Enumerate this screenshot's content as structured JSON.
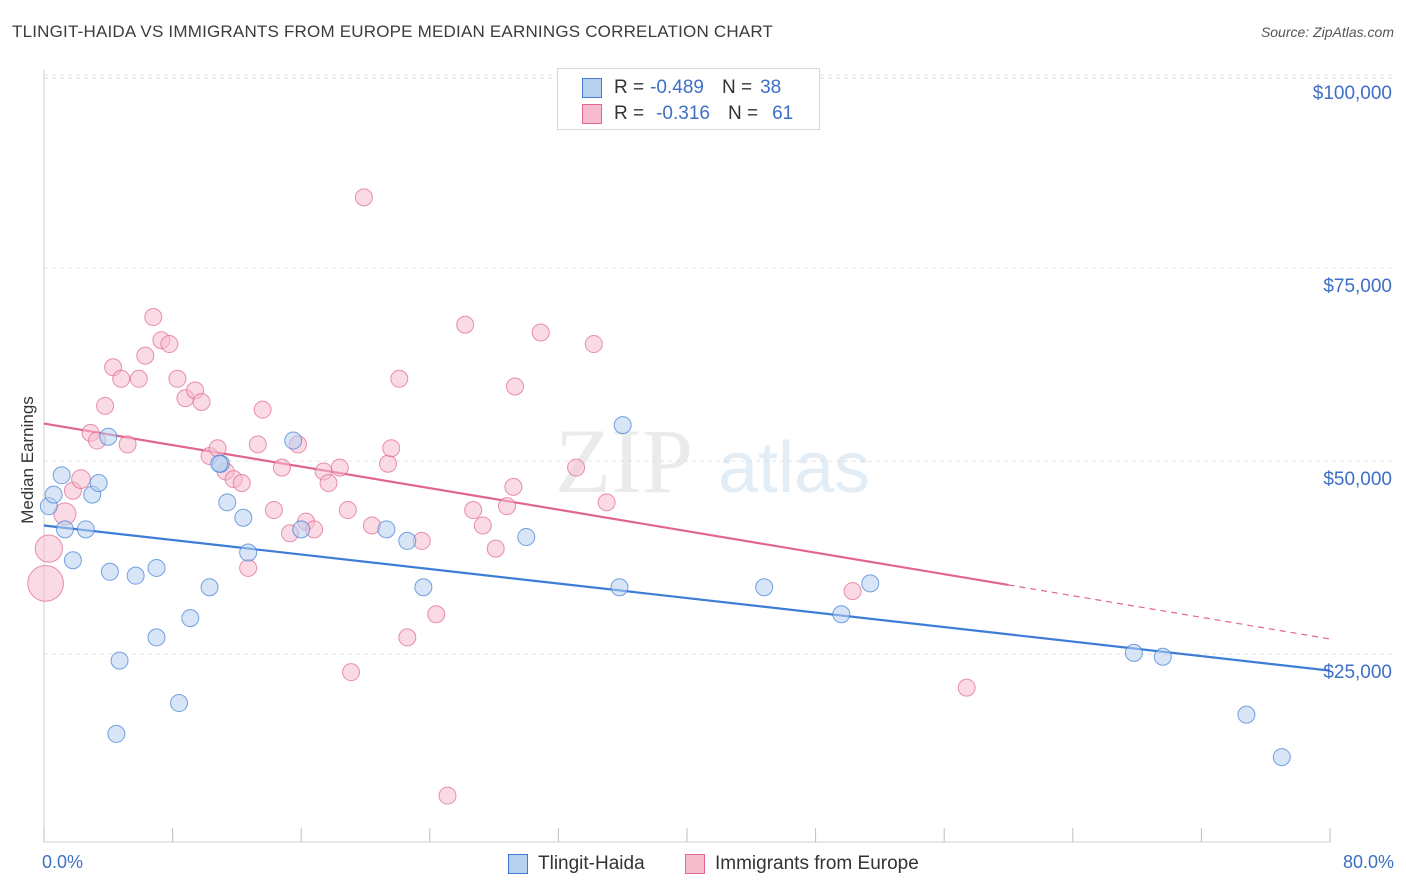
{
  "title": "TLINGIT-HAIDA VS IMMIGRANTS FROM EUROPE MEDIAN EARNINGS CORRELATION CHART",
  "source": "Source: ZipAtlas.com",
  "watermark": {
    "zip": "ZIP",
    "atlas": "atlas"
  },
  "legend": {
    "r_label": "R =",
    "n_label": "N =",
    "series1": {
      "r": "-0.489",
      "n": "38"
    },
    "series2": {
      "r": "-0.316",
      "n": "61"
    }
  },
  "chart_data": {
    "type": "scatter",
    "title": "TLINGIT-HAIDA VS IMMIGRANTS FROM EUROPE MEDIAN EARNINGS CORRELATION CHART",
    "xlabel": "",
    "ylabel": "Median Earnings",
    "xlim": [
      0,
      80
    ],
    "ylim": [
      3000,
      103000
    ],
    "x_tick_labels": [
      "0.0%",
      "80.0%"
    ],
    "y_ticks": [
      25000,
      50000,
      75000,
      100000
    ],
    "y_tick_labels": [
      "$25,000",
      "$50,000",
      "$75,000",
      "$100,000"
    ],
    "colors": {
      "series1": "#3d7dd6",
      "series2": "#e06590",
      "fill1": "#b8d0f0",
      "fill2": "#f6bccd",
      "axis_text": "#3d6fc4"
    },
    "series": [
      {
        "name": "Tlingit-Haida",
        "trend": {
          "x1": 0,
          "y1": 44000,
          "x2": 80,
          "y2": 25200
        },
        "points": [
          {
            "x": 0.3,
            "y": 46500,
            "s": 1
          },
          {
            "x": 0.6,
            "y": 48000,
            "s": 1
          },
          {
            "x": 1.1,
            "y": 50500,
            "s": 1
          },
          {
            "x": 1.3,
            "y": 43500,
            "s": 1
          },
          {
            "x": 1.8,
            "y": 39500,
            "s": 1
          },
          {
            "x": 2.6,
            "y": 43500,
            "s": 1
          },
          {
            "x": 3.0,
            "y": 48000,
            "s": 1
          },
          {
            "x": 3.4,
            "y": 49500,
            "s": 1
          },
          {
            "x": 4.1,
            "y": 38000,
            "s": 1
          },
          {
            "x": 4.0,
            "y": 55500,
            "s": 1
          },
          {
            "x": 4.7,
            "y": 26500,
            "s": 1
          },
          {
            "x": 4.5,
            "y": 17000,
            "s": 1
          },
          {
            "x": 5.7,
            "y": 37500,
            "s": 1
          },
          {
            "x": 7.0,
            "y": 38500,
            "s": 1
          },
          {
            "x": 7.0,
            "y": 29500,
            "s": 1
          },
          {
            "x": 8.4,
            "y": 21000,
            "s": 1
          },
          {
            "x": 9.1,
            "y": 32000,
            "s": 1
          },
          {
            "x": 10.3,
            "y": 36000,
            "s": 1
          },
          {
            "x": 11.0,
            "y": 52000,
            "s": 1
          },
          {
            "x": 11.4,
            "y": 47000,
            "s": 1
          },
          {
            "x": 12.4,
            "y": 45000,
            "s": 1
          },
          {
            "x": 12.7,
            "y": 40500,
            "s": 1
          },
          {
            "x": 15.5,
            "y": 55000,
            "s": 1
          },
          {
            "x": 16.0,
            "y": 43500,
            "s": 1
          },
          {
            "x": 21.3,
            "y": 43500,
            "s": 1
          },
          {
            "x": 22.6,
            "y": 42000,
            "s": 1
          },
          {
            "x": 23.6,
            "y": 36000,
            "s": 1
          },
          {
            "x": 30.0,
            "y": 42500,
            "s": 1
          },
          {
            "x": 36.0,
            "y": 57000,
            "s": 1
          },
          {
            "x": 35.8,
            "y": 36000,
            "s": 1
          },
          {
            "x": 44.8,
            "y": 36000,
            "s": 1
          },
          {
            "x": 49.6,
            "y": 32500,
            "s": 1
          },
          {
            "x": 51.4,
            "y": 36500,
            "s": 1
          },
          {
            "x": 67.8,
            "y": 27500,
            "s": 1
          },
          {
            "x": 69.6,
            "y": 27000,
            "s": 1
          },
          {
            "x": 74.8,
            "y": 19500,
            "s": 1
          },
          {
            "x": 77.0,
            "y": 14000,
            "s": 1
          },
          {
            "x": 10.9,
            "y": 52000,
            "s": 1
          }
        ]
      },
      {
        "name": "Immigrants from Europe",
        "trend": {
          "x1": 0,
          "y1": 57200,
          "x2": 60,
          "y2": 36300,
          "dash_x2": 80,
          "dash_y2": 29300
        },
        "points": [
          {
            "x": 0.1,
            "y": 36500,
            "s": 2.1
          },
          {
            "x": 0.3,
            "y": 41000,
            "s": 1.6
          },
          {
            "x": 1.3,
            "y": 45500,
            "s": 1.3
          },
          {
            "x": 1.8,
            "y": 48500,
            "s": 1
          },
          {
            "x": 2.3,
            "y": 50000,
            "s": 1.1
          },
          {
            "x": 2.9,
            "y": 56000,
            "s": 1
          },
          {
            "x": 3.3,
            "y": 55000,
            "s": 1
          },
          {
            "x": 3.8,
            "y": 59500,
            "s": 1
          },
          {
            "x": 4.3,
            "y": 64500,
            "s": 1
          },
          {
            "x": 4.8,
            "y": 63000,
            "s": 1
          },
          {
            "x": 5.2,
            "y": 54500,
            "s": 1
          },
          {
            "x": 5.9,
            "y": 63000,
            "s": 1
          },
          {
            "x": 6.3,
            "y": 66000,
            "s": 1
          },
          {
            "x": 6.8,
            "y": 71000,
            "s": 1
          },
          {
            "x": 7.3,
            "y": 68000,
            "s": 1
          },
          {
            "x": 7.8,
            "y": 67500,
            "s": 1
          },
          {
            "x": 8.3,
            "y": 63000,
            "s": 1
          },
          {
            "x": 8.8,
            "y": 60500,
            "s": 1
          },
          {
            "x": 9.4,
            "y": 61500,
            "s": 1
          },
          {
            "x": 9.8,
            "y": 60000,
            "s": 1
          },
          {
            "x": 10.3,
            "y": 53000,
            "s": 1
          },
          {
            "x": 10.8,
            "y": 54000,
            "s": 1
          },
          {
            "x": 11.3,
            "y": 51000,
            "s": 1
          },
          {
            "x": 11.8,
            "y": 50000,
            "s": 1
          },
          {
            "x": 12.3,
            "y": 49500,
            "s": 1
          },
          {
            "x": 12.7,
            "y": 38500,
            "s": 1
          },
          {
            "x": 13.3,
            "y": 54500,
            "s": 1
          },
          {
            "x": 13.6,
            "y": 59000,
            "s": 1
          },
          {
            "x": 14.3,
            "y": 46000,
            "s": 1
          },
          {
            "x": 14.8,
            "y": 51500,
            "s": 1
          },
          {
            "x": 15.3,
            "y": 43000,
            "s": 1
          },
          {
            "x": 15.8,
            "y": 54500,
            "s": 1
          },
          {
            "x": 16.3,
            "y": 44500,
            "s": 1
          },
          {
            "x": 16.8,
            "y": 43500,
            "s": 1
          },
          {
            "x": 17.4,
            "y": 51000,
            "s": 1
          },
          {
            "x": 17.7,
            "y": 49500,
            "s": 1
          },
          {
            "x": 18.4,
            "y": 51500,
            "s": 1
          },
          {
            "x": 18.9,
            "y": 46000,
            "s": 1
          },
          {
            "x": 19.1,
            "y": 25000,
            "s": 1
          },
          {
            "x": 19.9,
            "y": 86500,
            "s": 1
          },
          {
            "x": 20.4,
            "y": 44000,
            "s": 1
          },
          {
            "x": 21.4,
            "y": 52000,
            "s": 1
          },
          {
            "x": 21.6,
            "y": 54000,
            "s": 1
          },
          {
            "x": 22.1,
            "y": 63000,
            "s": 1
          },
          {
            "x": 22.6,
            "y": 29500,
            "s": 1
          },
          {
            "x": 23.5,
            "y": 42000,
            "s": 1
          },
          {
            "x": 24.4,
            "y": 32500,
            "s": 1
          },
          {
            "x": 25.1,
            "y": 9000,
            "s": 1
          },
          {
            "x": 26.2,
            "y": 70000,
            "s": 1
          },
          {
            "x": 26.7,
            "y": 46000,
            "s": 1
          },
          {
            "x": 27.3,
            "y": 44000,
            "s": 1
          },
          {
            "x": 28.1,
            "y": 41000,
            "s": 1
          },
          {
            "x": 28.8,
            "y": 46500,
            "s": 1
          },
          {
            "x": 29.2,
            "y": 49000,
            "s": 1
          },
          {
            "x": 29.3,
            "y": 62000,
            "s": 1
          },
          {
            "x": 30.9,
            "y": 69000,
            "s": 1
          },
          {
            "x": 33.1,
            "y": 51500,
            "s": 1
          },
          {
            "x": 34.2,
            "y": 67500,
            "s": 1
          },
          {
            "x": 35.0,
            "y": 47000,
            "s": 1
          },
          {
            "x": 50.3,
            "y": 35500,
            "s": 1
          },
          {
            "x": 57.4,
            "y": 23000,
            "s": 1
          }
        ]
      }
    ]
  },
  "bottom_legend": {
    "series1": "Tlingit-Haida",
    "series2": "Immigrants from Europe"
  }
}
